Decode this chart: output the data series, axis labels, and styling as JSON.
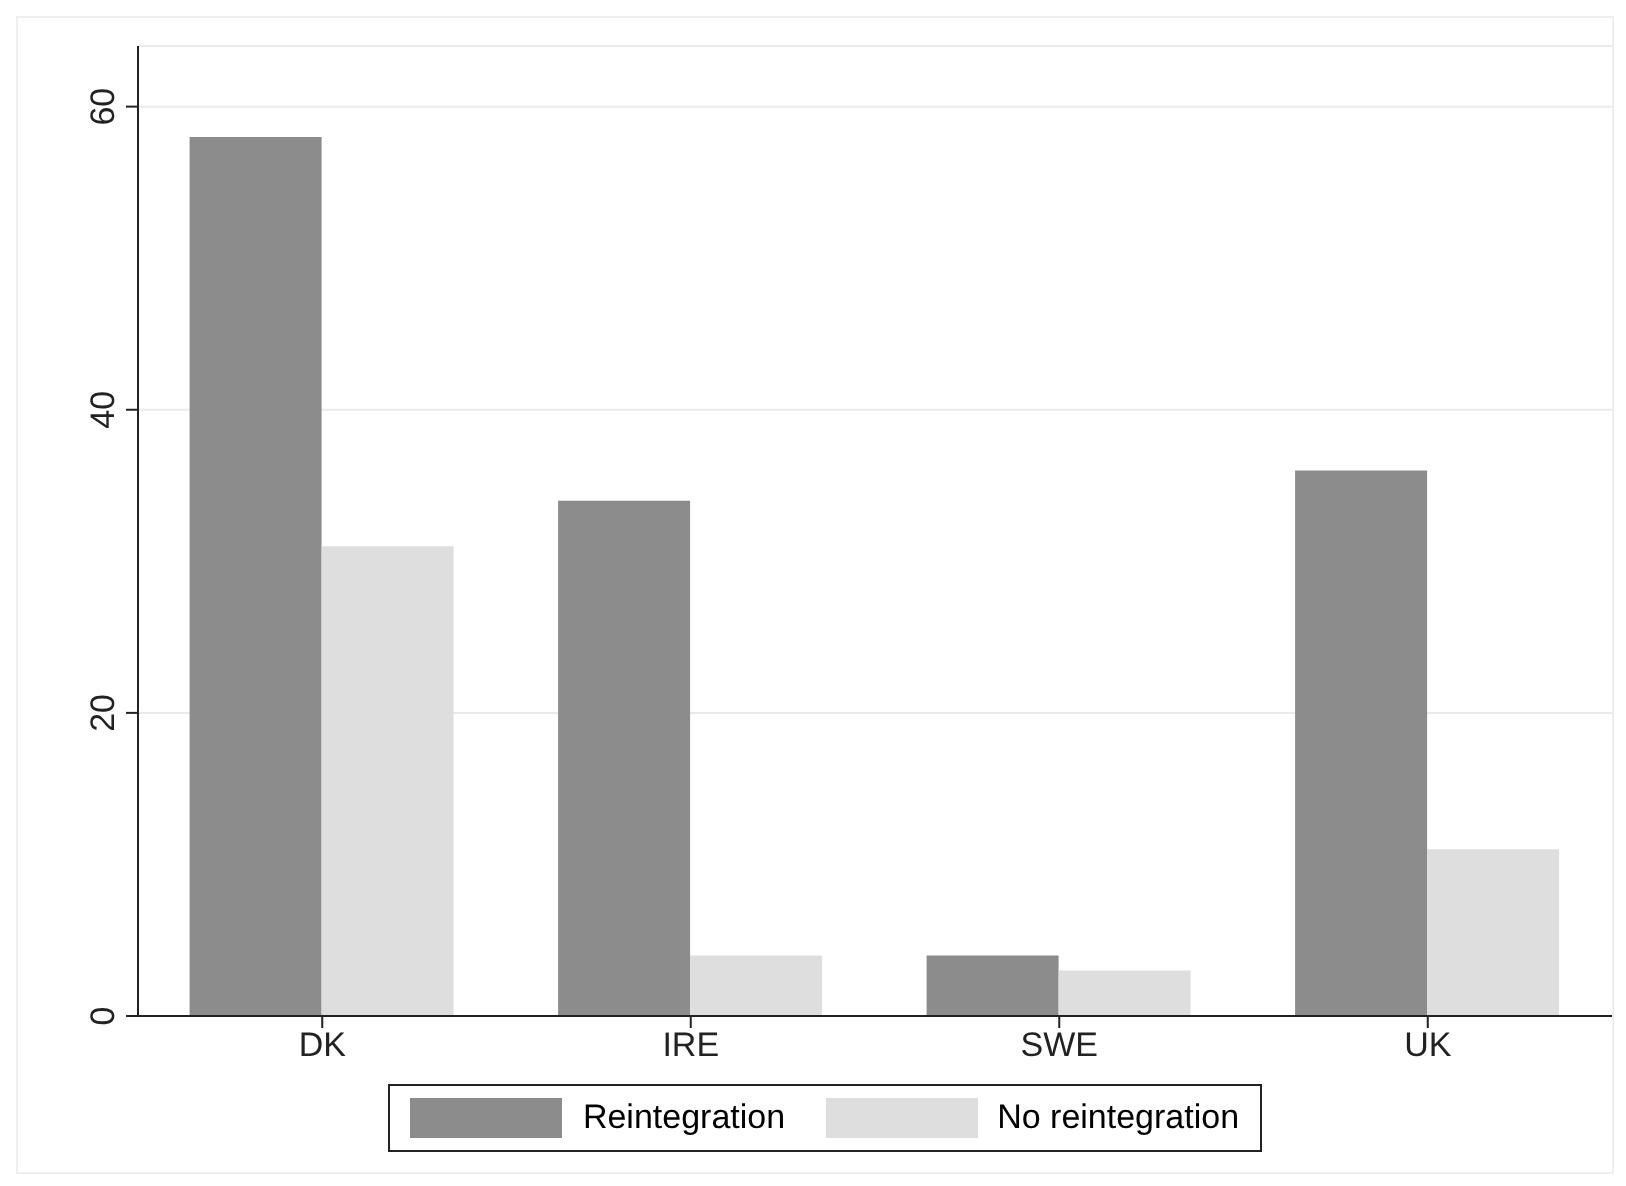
{
  "chart_data": {
    "type": "bar",
    "categories": [
      "DK",
      "IRE",
      "SWE",
      "UK"
    ],
    "series": [
      {
        "name": "Reintegration",
        "color": "#8c8c8c",
        "values": [
          58,
          34,
          4,
          36
        ]
      },
      {
        "name": "No reintegration",
        "color": "#dedede",
        "values": [
          31,
          4,
          3,
          11
        ]
      }
    ],
    "ylim": [
      0,
      64
    ],
    "yticks": [
      0,
      20,
      40,
      60
    ],
    "grid": "y",
    "legend": "bottom"
  }
}
